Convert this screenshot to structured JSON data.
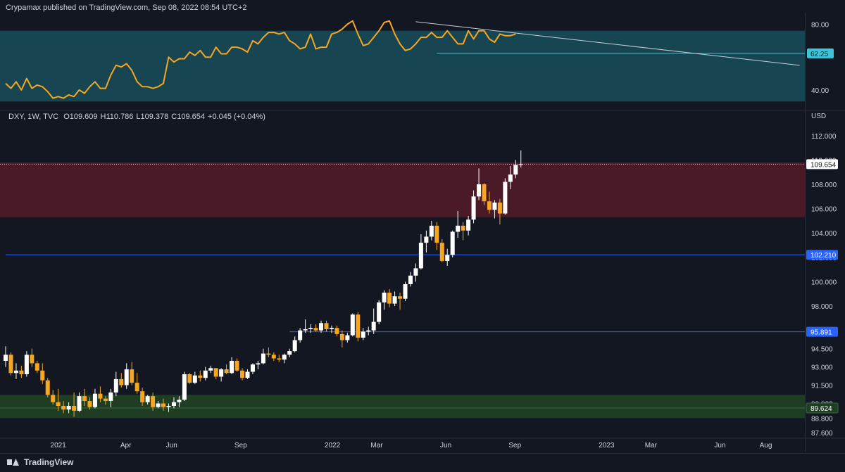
{
  "header": {
    "published": "Crypamax published on TradingView.com, Sep 08, 2022 08:54 UTC+2"
  },
  "ohlc": {
    "symbol": "DXY, 1W, TVC",
    "open": "O109.609",
    "high": "H110.786",
    "low": "L109.378",
    "close": "C109.654",
    "change": "+0.045 (+0.04%)"
  },
  "footer": {
    "brand": "TradingView"
  },
  "colors": {
    "background": "#131722",
    "rsi_band": "#174551",
    "rsi_line": "#f5a623",
    "resistance_zone": "#4a1a26",
    "support_zone": "#1e3d22",
    "hline": "#2962ff",
    "rsi_hline": "#3cc4d8",
    "candle_up": "#ffffff",
    "candle_down": "#f5a623"
  },
  "chart_data": [
    {
      "type": "line",
      "name": "RSI panel",
      "y_ticks": [
        "80.00",
        "40.00"
      ],
      "ylim": [
        28,
        87
      ],
      "band": [
        33,
        76
      ],
      "hline": {
        "value": 62.25,
        "label": "62.25",
        "x_start": "2022-05-20"
      },
      "trendline": {
        "x": [
          "2022-04-22",
          "2023-09-15"
        ],
        "y": [
          81.5,
          55.0
        ]
      },
      "x": [
        "2020-10-23",
        "2020-10-30",
        "2020-11-06",
        "2020-11-13",
        "2020-11-20",
        "2020-11-27",
        "2020-12-04",
        "2020-12-11",
        "2020-12-18",
        "2020-12-25",
        "2021-01-01",
        "2021-01-08",
        "2021-01-15",
        "2021-01-22",
        "2021-01-29",
        "2021-02-05",
        "2021-02-12",
        "2021-02-19",
        "2021-02-26",
        "2021-03-05",
        "2021-03-12",
        "2021-03-19",
        "2021-03-26",
        "2021-04-02",
        "2021-04-09",
        "2021-04-16",
        "2021-04-23",
        "2021-04-30",
        "2021-05-07",
        "2021-05-14",
        "2021-05-21",
        "2021-05-28",
        "2021-06-04",
        "2021-06-11",
        "2021-06-18",
        "2021-06-25",
        "2021-07-02",
        "2021-07-09",
        "2021-07-16",
        "2021-07-23",
        "2021-07-30",
        "2021-08-06",
        "2021-08-13",
        "2021-08-20",
        "2021-08-27",
        "2021-09-03",
        "2021-09-10",
        "2021-09-17",
        "2021-09-24",
        "2021-10-01",
        "2021-10-08",
        "2021-10-15",
        "2021-10-22",
        "2021-10-29",
        "2021-11-05",
        "2021-11-12",
        "2021-11-19",
        "2021-11-26",
        "2021-12-03",
        "2021-12-10",
        "2021-12-17",
        "2021-12-24",
        "2021-12-31",
        "2022-01-07",
        "2022-01-14",
        "2022-01-21",
        "2022-01-28",
        "2022-02-04",
        "2022-02-11",
        "2022-02-18",
        "2022-02-25",
        "2022-03-04",
        "2022-03-11",
        "2022-03-18",
        "2022-03-25",
        "2022-04-01",
        "2022-04-08",
        "2022-04-15",
        "2022-04-22",
        "2022-04-29",
        "2022-05-06",
        "2022-05-13",
        "2022-05-20",
        "2022-05-27",
        "2022-06-03",
        "2022-06-10",
        "2022-06-17",
        "2022-06-24",
        "2022-07-01",
        "2022-07-08",
        "2022-07-15",
        "2022-07-22",
        "2022-07-29",
        "2022-08-05",
        "2022-08-12",
        "2022-08-19",
        "2022-08-26",
        "2022-09-02"
      ],
      "values": [
        44,
        41,
        45,
        40,
        47,
        41,
        43,
        42,
        39,
        35,
        36,
        35,
        37,
        36,
        40,
        38,
        42,
        45,
        41,
        41,
        49,
        55,
        54,
        56,
        52,
        45,
        42,
        42,
        41,
        42,
        44,
        60,
        57,
        59,
        59,
        63,
        61,
        64,
        60,
        60,
        66,
        62,
        62,
        66,
        66,
        65,
        63,
        70,
        68,
        72,
        75,
        75,
        74,
        75,
        70,
        68,
        65,
        66,
        74,
        65,
        66,
        66,
        74,
        75,
        77,
        80,
        82,
        74,
        67,
        68,
        72,
        76,
        81,
        82,
        74,
        68,
        64,
        65,
        68,
        72,
        72,
        75,
        72,
        72,
        76,
        72,
        68,
        68,
        76,
        71,
        76,
        76,
        71,
        69,
        74,
        73,
        73,
        74
      ]
    },
    {
      "type": "candlestick",
      "name": "DXY",
      "currency": "USD",
      "y_ticks": [
        "112.000",
        "110.000",
        "108.000",
        "106.000",
        "104.000",
        "102.000",
        "100.000",
        "98.000",
        "96.000",
        "94.500",
        "93.000",
        "91.500",
        "90.000",
        "88.800",
        "87.600"
      ],
      "ylim": [
        87.2,
        113.2
      ],
      "x_ticks": [
        "2021",
        "Apr",
        "Jun",
        "Sep",
        "2022",
        "Mar",
        "Jun",
        "Sep",
        "2023",
        "Mar",
        "Jun",
        "Aug"
      ],
      "x_tick_dates": [
        "2021-01-01",
        "2021-04-01",
        "2021-06-01",
        "2021-09-01",
        "2022-01-01",
        "2022-03-01",
        "2022-06-01",
        "2022-09-01",
        "2023-01-01",
        "2023-03-01",
        "2023-06-01",
        "2023-08-01"
      ],
      "resistance_zone": [
        105.3,
        109.8
      ],
      "support_zone": [
        88.8,
        90.7
      ],
      "support_line": 89.624,
      "hlines": [
        {
          "value": 102.21,
          "label": "102.210",
          "x_start": "2020-10-23"
        },
        {
          "value": 95.891,
          "label": "95.891",
          "x_start": "2021-11-05"
        }
      ],
      "last_price": {
        "value": 109.654,
        "label": "109.654"
      },
      "price_labels": [
        "89.624"
      ],
      "candles": [
        {
          "date": "2020-10-23",
          "o": 93.5,
          "h": 94.7,
          "l": 93.0,
          "c": 94.0
        },
        {
          "date": "2020-10-30",
          "o": 94.0,
          "h": 94.2,
          "l": 92.3,
          "c": 92.5
        },
        {
          "date": "2020-11-06",
          "o": 92.5,
          "h": 93.3,
          "l": 92.0,
          "c": 92.7
        },
        {
          "date": "2020-11-13",
          "o": 92.7,
          "h": 93.1,
          "l": 92.1,
          "c": 92.4
        },
        {
          "date": "2020-11-20",
          "o": 92.4,
          "h": 94.3,
          "l": 92.2,
          "c": 94.0
        },
        {
          "date": "2020-11-27",
          "o": 94.0,
          "h": 94.5,
          "l": 93.0,
          "c": 93.3
        },
        {
          "date": "2020-12-04",
          "o": 93.3,
          "h": 93.5,
          "l": 92.5,
          "c": 92.7
        },
        {
          "date": "2020-12-11",
          "o": 92.7,
          "h": 93.3,
          "l": 91.6,
          "c": 91.9
        },
        {
          "date": "2020-12-18",
          "o": 91.9,
          "h": 92.1,
          "l": 90.5,
          "c": 90.7
        },
        {
          "date": "2020-12-25",
          "o": 90.7,
          "h": 91.1,
          "l": 89.9,
          "c": 90.1
        },
        {
          "date": "2021-01-01",
          "o": 90.1,
          "h": 91.2,
          "l": 89.4,
          "c": 89.8
        },
        {
          "date": "2021-01-08",
          "o": 89.8,
          "h": 90.2,
          "l": 89.2,
          "c": 89.5
        },
        {
          "date": "2021-01-15",
          "o": 89.5,
          "h": 90.1,
          "l": 89.2,
          "c": 89.8
        },
        {
          "date": "2021-01-22",
          "o": 89.8,
          "h": 90.9,
          "l": 88.9,
          "c": 89.4
        },
        {
          "date": "2021-01-29",
          "o": 89.4,
          "h": 90.9,
          "l": 89.3,
          "c": 90.6
        },
        {
          "date": "2021-02-05",
          "o": 90.6,
          "h": 91.2,
          "l": 89.8,
          "c": 90.2
        },
        {
          "date": "2021-02-12",
          "o": 90.2,
          "h": 90.5,
          "l": 89.5,
          "c": 89.7
        },
        {
          "date": "2021-02-19",
          "o": 89.7,
          "h": 91.2,
          "l": 89.6,
          "c": 90.8
        },
        {
          "date": "2021-02-26",
          "o": 90.8,
          "h": 91.4,
          "l": 90.1,
          "c": 90.4
        },
        {
          "date": "2021-03-05",
          "o": 90.4,
          "h": 90.6,
          "l": 89.9,
          "c": 90.2
        },
        {
          "date": "2021-03-12",
          "o": 90.2,
          "h": 91.2,
          "l": 89.7,
          "c": 90.9
        },
        {
          "date": "2021-03-19",
          "o": 90.9,
          "h": 92.6,
          "l": 90.6,
          "c": 92.0
        },
        {
          "date": "2021-03-26",
          "o": 92.0,
          "h": 92.5,
          "l": 91.3,
          "c": 91.5
        },
        {
          "date": "2021-04-02",
          "o": 91.5,
          "h": 93.3,
          "l": 91.2,
          "c": 92.8
        },
        {
          "date": "2021-04-09",
          "o": 92.8,
          "h": 93.4,
          "l": 91.5,
          "c": 91.7
        },
        {
          "date": "2021-04-16",
          "o": 91.7,
          "h": 92.5,
          "l": 90.8,
          "c": 91.0
        },
        {
          "date": "2021-04-23",
          "o": 91.0,
          "h": 91.3,
          "l": 89.8,
          "c": 90.1
        },
        {
          "date": "2021-04-30",
          "o": 90.1,
          "h": 90.7,
          "l": 89.9,
          "c": 90.6
        },
        {
          "date": "2021-05-07",
          "o": 90.6,
          "h": 90.9,
          "l": 89.4,
          "c": 89.7
        },
        {
          "date": "2021-05-14",
          "o": 89.7,
          "h": 90.2,
          "l": 89.6,
          "c": 90.0
        },
        {
          "date": "2021-05-21",
          "o": 90.0,
          "h": 90.4,
          "l": 89.4,
          "c": 89.7
        },
        {
          "date": "2021-05-28",
          "o": 89.7,
          "h": 90.0,
          "l": 89.3,
          "c": 89.8
        },
        {
          "date": "2021-06-04",
          "o": 89.8,
          "h": 90.5,
          "l": 89.6,
          "c": 90.1
        },
        {
          "date": "2021-06-11",
          "o": 90.1,
          "h": 90.6,
          "l": 89.7,
          "c": 90.3
        },
        {
          "date": "2021-06-18",
          "o": 90.3,
          "h": 92.6,
          "l": 90.2,
          "c": 92.4
        },
        {
          "date": "2021-06-25",
          "o": 92.4,
          "h": 92.5,
          "l": 91.6,
          "c": 91.7
        },
        {
          "date": "2021-07-02",
          "o": 91.7,
          "h": 92.6,
          "l": 91.6,
          "c": 92.3
        },
        {
          "date": "2021-07-09",
          "o": 92.3,
          "h": 92.7,
          "l": 91.8,
          "c": 92.1
        },
        {
          "date": "2021-07-16",
          "o": 92.1,
          "h": 93.0,
          "l": 91.9,
          "c": 92.7
        },
        {
          "date": "2021-07-23",
          "o": 92.7,
          "h": 93.1,
          "l": 92.5,
          "c": 92.9
        },
        {
          "date": "2021-07-30",
          "o": 92.9,
          "h": 92.9,
          "l": 92.0,
          "c": 92.2
        },
        {
          "date": "2021-08-06",
          "o": 92.2,
          "h": 92.9,
          "l": 91.8,
          "c": 92.8
        },
        {
          "date": "2021-08-13",
          "o": 92.8,
          "h": 93.2,
          "l": 92.4,
          "c": 92.5
        },
        {
          "date": "2021-08-20",
          "o": 92.5,
          "h": 93.8,
          "l": 92.4,
          "c": 93.5
        },
        {
          "date": "2021-08-27",
          "o": 93.5,
          "h": 93.7,
          "l": 92.6,
          "c": 92.7
        },
        {
          "date": "2021-09-03",
          "o": 92.7,
          "h": 92.9,
          "l": 91.9,
          "c": 92.1
        },
        {
          "date": "2021-09-10",
          "o": 92.1,
          "h": 92.8,
          "l": 92.0,
          "c": 92.6
        },
        {
          "date": "2021-09-17",
          "o": 92.6,
          "h": 93.3,
          "l": 92.4,
          "c": 93.2
        },
        {
          "date": "2021-09-24",
          "o": 93.2,
          "h": 93.5,
          "l": 92.8,
          "c": 93.3
        },
        {
          "date": "2021-10-01",
          "o": 93.3,
          "h": 94.5,
          "l": 93.2,
          "c": 94.1
        },
        {
          "date": "2021-10-08",
          "o": 94.1,
          "h": 94.6,
          "l": 93.8,
          "c": 94.0
        },
        {
          "date": "2021-10-15",
          "o": 94.0,
          "h": 94.2,
          "l": 93.5,
          "c": 93.7
        },
        {
          "date": "2021-10-22",
          "o": 93.7,
          "h": 94.0,
          "l": 93.4,
          "c": 93.6
        },
        {
          "date": "2021-10-29",
          "o": 93.6,
          "h": 94.1,
          "l": 93.3,
          "c": 94.0
        },
        {
          "date": "2021-11-05",
          "o": 94.0,
          "h": 94.5,
          "l": 93.8,
          "c": 94.3
        },
        {
          "date": "2021-11-12",
          "o": 94.3,
          "h": 95.5,
          "l": 94.2,
          "c": 95.2
        },
        {
          "date": "2021-11-19",
          "o": 95.2,
          "h": 96.2,
          "l": 95.0,
          "c": 96.0
        },
        {
          "date": "2021-11-26",
          "o": 96.0,
          "h": 96.9,
          "l": 95.8,
          "c": 96.1
        },
        {
          "date": "2021-12-03",
          "o": 96.1,
          "h": 96.5,
          "l": 95.8,
          "c": 96.2
        },
        {
          "date": "2021-12-10",
          "o": 96.2,
          "h": 96.5,
          "l": 95.9,
          "c": 96.0
        },
        {
          "date": "2021-12-17",
          "o": 96.0,
          "h": 96.8,
          "l": 95.8,
          "c": 96.6
        },
        {
          "date": "2021-12-24",
          "o": 96.6,
          "h": 96.8,
          "l": 95.9,
          "c": 96.1
        },
        {
          "date": "2021-12-31",
          "o": 96.1,
          "h": 96.4,
          "l": 95.8,
          "c": 96.2
        },
        {
          "date": "2022-01-07",
          "o": 96.2,
          "h": 96.4,
          "l": 95.5,
          "c": 95.7
        },
        {
          "date": "2022-01-14",
          "o": 95.7,
          "h": 96.0,
          "l": 94.6,
          "c": 95.2
        },
        {
          "date": "2022-01-21",
          "o": 95.2,
          "h": 95.8,
          "l": 95.0,
          "c": 95.6
        },
        {
          "date": "2022-01-28",
          "o": 95.6,
          "h": 97.4,
          "l": 95.5,
          "c": 97.3
        },
        {
          "date": "2022-02-04",
          "o": 97.3,
          "h": 97.5,
          "l": 95.1,
          "c": 95.4
        },
        {
          "date": "2022-02-11",
          "o": 95.4,
          "h": 96.2,
          "l": 95.2,
          "c": 95.9
        },
        {
          "date": "2022-02-18",
          "o": 95.9,
          "h": 96.3,
          "l": 95.6,
          "c": 96.0
        },
        {
          "date": "2022-02-25",
          "o": 96.0,
          "h": 97.8,
          "l": 95.7,
          "c": 96.7
        },
        {
          "date": "2022-03-04",
          "o": 96.7,
          "h": 98.5,
          "l": 96.5,
          "c": 98.3
        },
        {
          "date": "2022-03-11",
          "o": 98.3,
          "h": 99.3,
          "l": 97.7,
          "c": 99.1
        },
        {
          "date": "2022-03-18",
          "o": 99.1,
          "h": 99.4,
          "l": 97.9,
          "c": 98.2
        },
        {
          "date": "2022-03-25",
          "o": 98.2,
          "h": 99.2,
          "l": 98.0,
          "c": 98.8
        },
        {
          "date": "2022-04-01",
          "o": 98.8,
          "h": 99.1,
          "l": 97.7,
          "c": 98.6
        },
        {
          "date": "2022-04-08",
          "o": 98.6,
          "h": 100.0,
          "l": 98.4,
          "c": 99.8
        },
        {
          "date": "2022-04-15",
          "o": 99.8,
          "h": 100.8,
          "l": 99.6,
          "c": 100.5
        },
        {
          "date": "2022-04-22",
          "o": 100.5,
          "h": 101.5,
          "l": 100.0,
          "c": 101.1
        },
        {
          "date": "2022-04-29",
          "o": 101.1,
          "h": 103.9,
          "l": 101.0,
          "c": 103.2
        },
        {
          "date": "2022-05-06",
          "o": 103.2,
          "h": 104.2,
          "l": 102.4,
          "c": 103.7
        },
        {
          "date": "2022-05-13",
          "o": 103.7,
          "h": 105.0,
          "l": 103.4,
          "c": 104.6
        },
        {
          "date": "2022-05-20",
          "o": 104.6,
          "h": 104.9,
          "l": 102.6,
          "c": 103.2
        },
        {
          "date": "2022-05-27",
          "o": 103.2,
          "h": 103.5,
          "l": 101.6,
          "c": 101.7
        },
        {
          "date": "2022-06-03",
          "o": 101.7,
          "h": 102.7,
          "l": 101.3,
          "c": 102.2
        },
        {
          "date": "2022-06-10",
          "o": 102.2,
          "h": 104.2,
          "l": 102.0,
          "c": 104.1
        },
        {
          "date": "2022-06-17",
          "o": 104.1,
          "h": 105.8,
          "l": 103.6,
          "c": 104.6
        },
        {
          "date": "2022-06-24",
          "o": 104.6,
          "h": 104.9,
          "l": 103.4,
          "c": 104.2
        },
        {
          "date": "2022-07-01",
          "o": 104.2,
          "h": 105.4,
          "l": 103.8,
          "c": 105.1
        },
        {
          "date": "2022-07-08",
          "o": 105.1,
          "h": 107.5,
          "l": 104.8,
          "c": 107.0
        },
        {
          "date": "2022-07-15",
          "o": 107.0,
          "h": 109.3,
          "l": 106.7,
          "c": 108.0
        },
        {
          "date": "2022-07-22",
          "o": 108.0,
          "h": 108.1,
          "l": 106.3,
          "c": 106.6
        },
        {
          "date": "2022-07-29",
          "o": 106.6,
          "h": 107.4,
          "l": 105.6,
          "c": 105.9
        },
        {
          "date": "2022-08-05",
          "o": 105.9,
          "h": 106.7,
          "l": 105.2,
          "c": 106.5
        },
        {
          "date": "2022-08-12",
          "o": 106.5,
          "h": 106.8,
          "l": 104.7,
          "c": 105.6
        },
        {
          "date": "2022-08-19",
          "o": 105.6,
          "h": 108.5,
          "l": 105.5,
          "c": 108.2
        },
        {
          "date": "2022-08-26",
          "o": 108.2,
          "h": 109.5,
          "l": 107.6,
          "c": 108.8
        },
        {
          "date": "2022-09-02",
          "o": 108.8,
          "h": 110.0,
          "l": 108.5,
          "c": 109.6
        },
        {
          "date": "2022-09-09",
          "o": 109.609,
          "h": 110.786,
          "l": 109.378,
          "c": 109.654
        }
      ]
    }
  ]
}
